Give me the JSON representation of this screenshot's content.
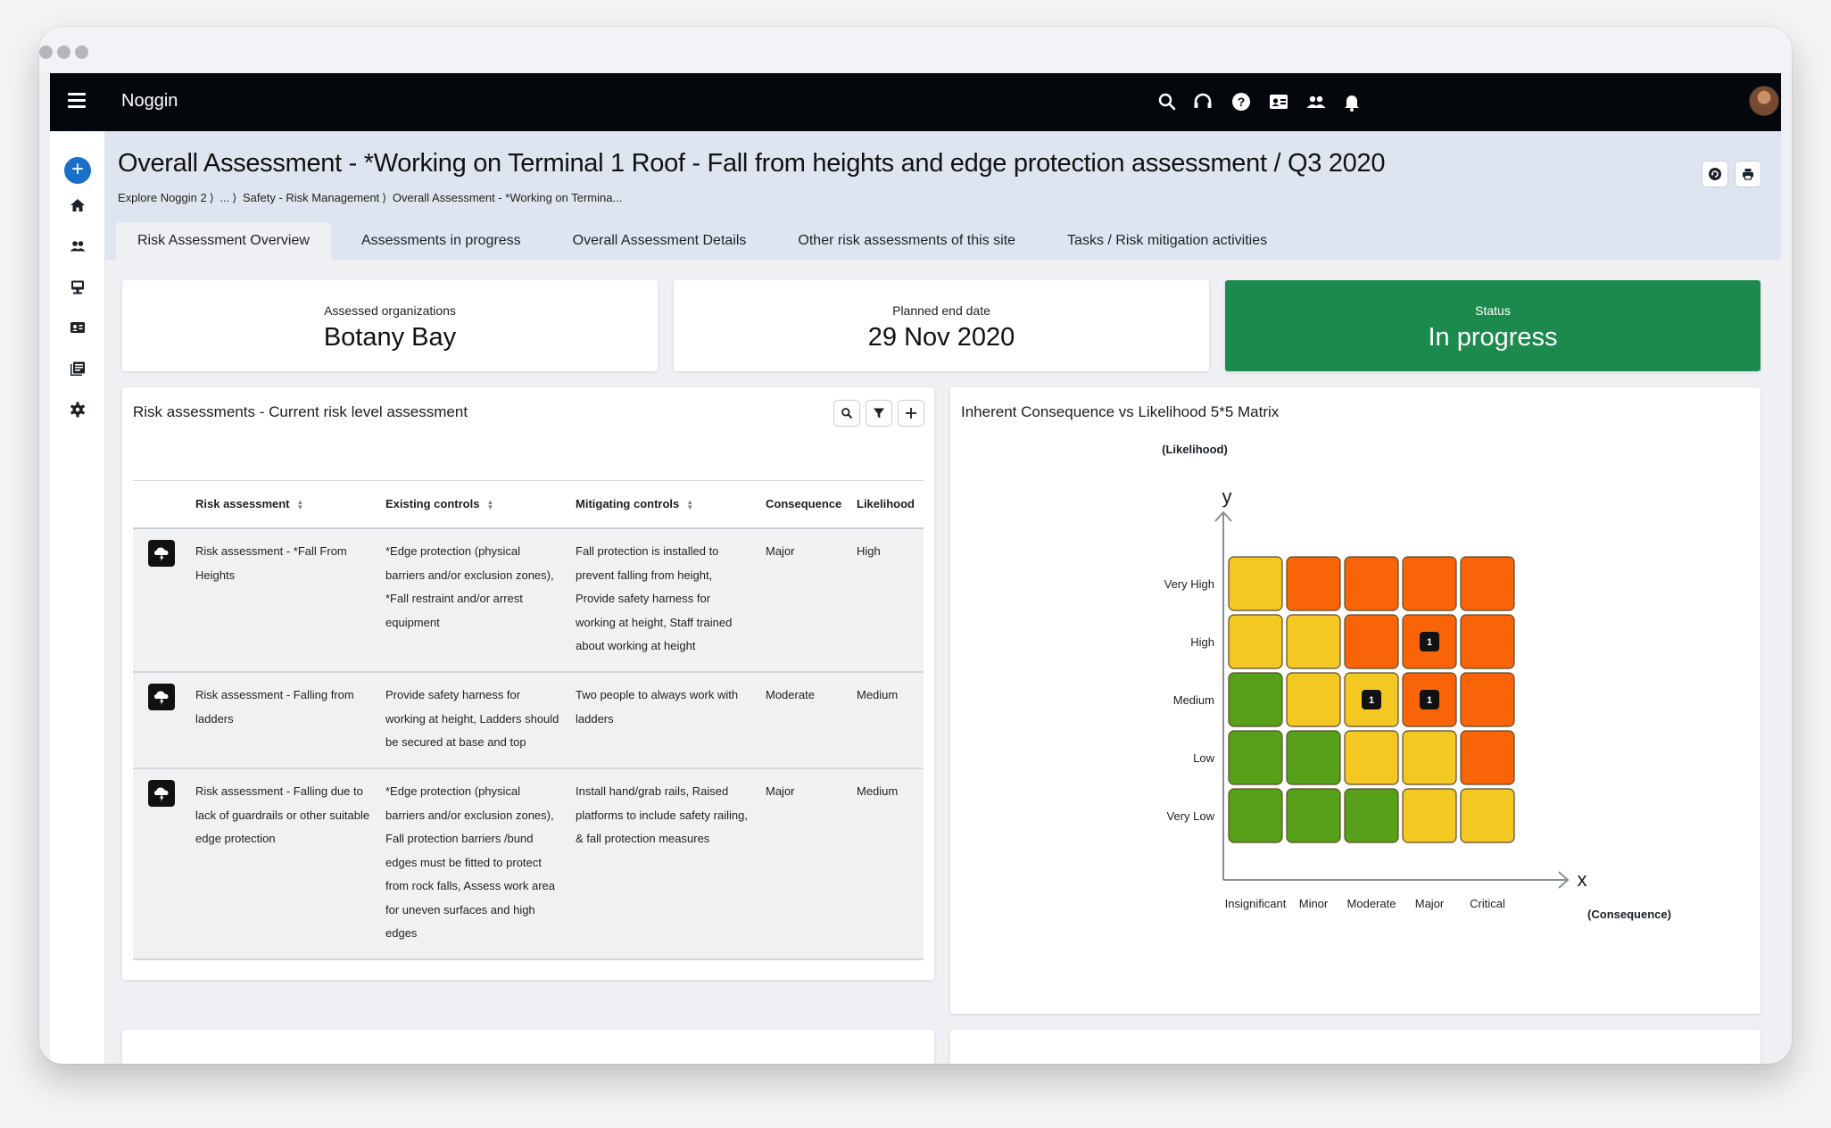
{
  "app": {
    "brand": "Noggin"
  },
  "topnav": {
    "icons": [
      "search-icon",
      "headset-icon",
      "help-icon",
      "contact-card-icon",
      "people-icon",
      "bell-icon"
    ]
  },
  "sidebar": {
    "items": [
      "add",
      "home",
      "people",
      "devices",
      "badge",
      "library",
      "settings"
    ]
  },
  "header": {
    "title": "Overall Assessment - *Working on Terminal 1 Roof - Fall from heights and edge protection assessment / Q3 2020",
    "breadcrumb": [
      "Explore Noggin 2",
      "...",
      "Safety - Risk Management",
      "Overall Assessment - *Working on Termina..."
    ]
  },
  "tabs": [
    "Risk Assessment Overview",
    "Assessments in progress",
    "Overall Assessment Details",
    "Other risk assessments of this site",
    "Tasks / Risk mitigation activities"
  ],
  "summary": {
    "orgs_label": "Assessed organizations",
    "orgs_value": "Botany Bay",
    "end_label": "Planned end date",
    "end_value": "29 Nov 2020",
    "status_label": "Status",
    "status_value": "In progress",
    "status_color": "#1c8a4d"
  },
  "risk_table": {
    "title": "Risk assessments - Current risk level assessment",
    "columns": [
      "Risk assessment",
      "Existing controls",
      "Mitigating controls",
      "Consequence",
      "Likelihood"
    ],
    "rows": [
      {
        "name": [
          "Risk assessment - *Fall From",
          "Heights"
        ],
        "existing": [
          "*Edge protection (physical",
          "barriers and/or exclusion zones),",
          "*Fall restraint and/or arrest",
          "equipment"
        ],
        "mitigating": [
          "Fall protection is installed to",
          "prevent falling from height,",
          "Provide safety harness for",
          "working at height, Staff trained",
          "about working at height"
        ],
        "consequence": "Major",
        "likelihood": "High"
      },
      {
        "name": [
          "Risk assessment - Falling from",
          "ladders"
        ],
        "existing": [
          "Provide safety harness for",
          "working at height, Ladders should",
          "be secured at base and top"
        ],
        "mitigating": [
          "Two people to always work with",
          "ladders"
        ],
        "consequence": "Moderate",
        "likelihood": "Medium"
      },
      {
        "name": [
          "Risk assessment - Falling due to",
          "lack of guardrails or other suitable",
          "edge protection"
        ],
        "existing": [
          "*Edge protection (physical",
          "barriers and/or exclusion zones),",
          "Fall protection barriers /bund",
          "edges must be fitted to protect",
          "from rock falls, Assess work area",
          "for uneven surfaces and high",
          "edges"
        ],
        "mitigating": [
          "Install hand/grab rails, Raised",
          "platforms to include safety railing,",
          "& fall protection measures"
        ],
        "consequence": "Major",
        "likelihood": "Medium"
      }
    ]
  },
  "matrix": {
    "title": "Inherent Consequence vs Likelihood 5*5 Matrix",
    "y_caption": "(Likelihood)",
    "x_caption": "(Consequence)",
    "y_axis_letter": "y",
    "x_axis_letter": "x",
    "colors": {
      "green": "#56a01a",
      "yellow": "#f4c823",
      "orange": "#fa6409",
      "cell_border": "#5c4a2a",
      "marker": "#121212"
    }
  },
  "chart_data": {
    "type": "heatmap",
    "title": "Inherent Consequence vs Likelihood 5*5 Matrix",
    "xlabel": "(Consequence)",
    "ylabel": "(Likelihood)",
    "x": [
      "Insignificant",
      "Minor",
      "Moderate",
      "Major",
      "Critical"
    ],
    "y": [
      "Very High",
      "High",
      "Medium",
      "Low",
      "Very Low"
    ],
    "levels": [
      [
        "yellow",
        "orange",
        "orange",
        "orange",
        "orange"
      ],
      [
        "yellow",
        "yellow",
        "orange",
        "orange",
        "orange"
      ],
      [
        "green",
        "yellow",
        "yellow",
        "orange",
        "orange"
      ],
      [
        "green",
        "green",
        "yellow",
        "yellow",
        "orange"
      ],
      [
        "green",
        "green",
        "green",
        "yellow",
        "yellow"
      ]
    ],
    "counts": [
      [
        0,
        0,
        0,
        0,
        0
      ],
      [
        0,
        0,
        0,
        1,
        0
      ],
      [
        0,
        0,
        1,
        1,
        0
      ],
      [
        0,
        0,
        0,
        0,
        0
      ],
      [
        0,
        0,
        0,
        0,
        0
      ]
    ]
  }
}
